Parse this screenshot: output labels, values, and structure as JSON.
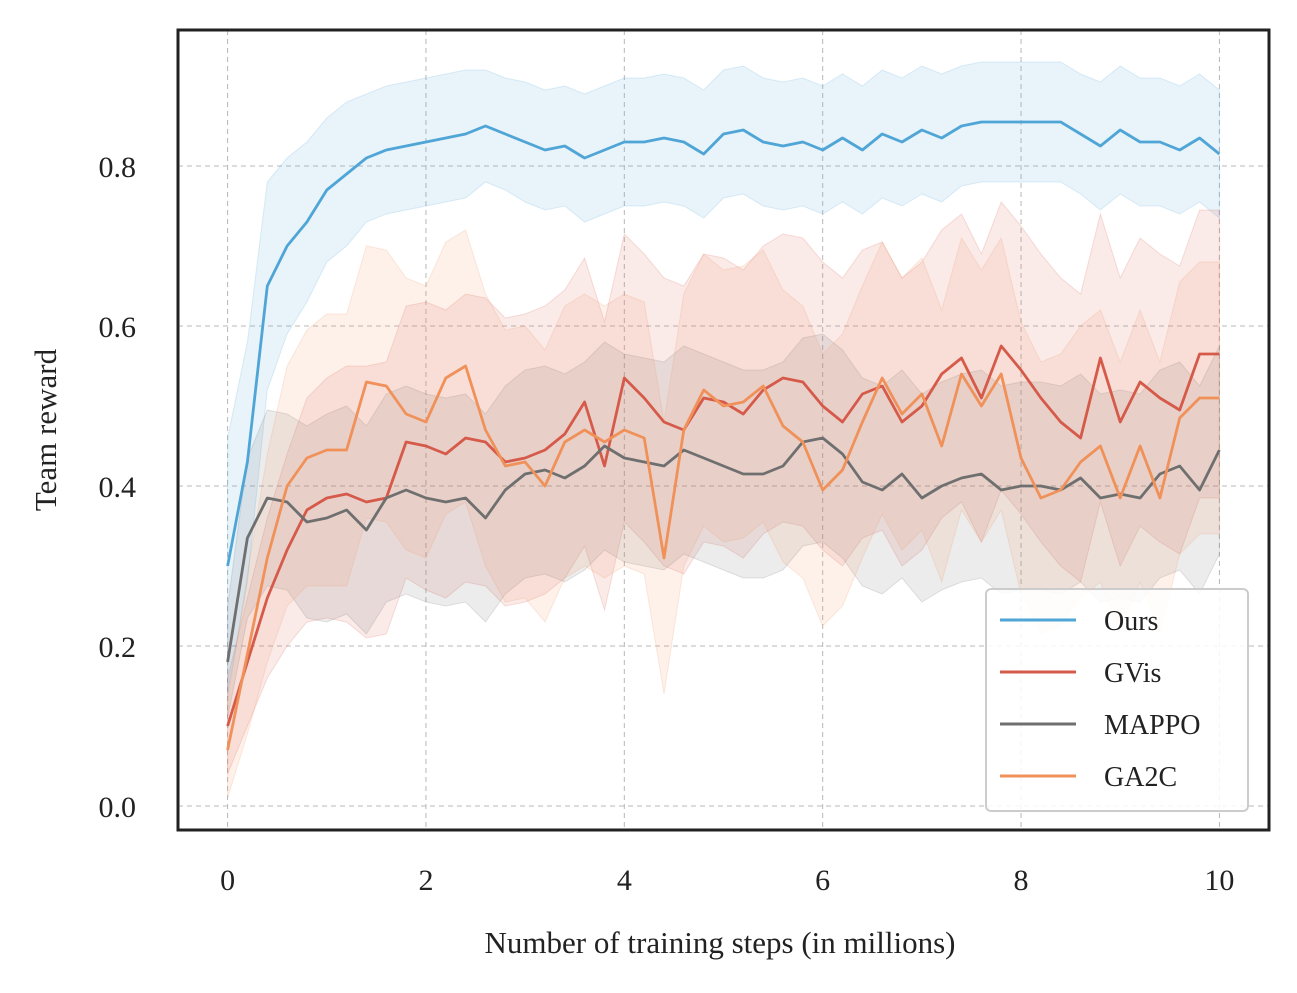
{
  "chart_data": {
    "type": "line",
    "title": "",
    "xlabel": "Number of training steps (in millions)",
    "ylabel": "Team reward",
    "xlim": [
      -0.5,
      10.5
    ],
    "ylim": [
      -0.03,
      0.97
    ],
    "xticks": [
      0,
      2,
      4,
      6,
      8,
      10
    ],
    "xtick_labels": [
      "0",
      "2",
      "4",
      "6",
      "8",
      "10"
    ],
    "yticks": [
      0.0,
      0.2,
      0.4,
      0.6,
      0.8
    ],
    "ytick_labels": [
      "0.0",
      "0.2",
      "0.4",
      "0.6",
      "0.8"
    ],
    "grid": true,
    "legend_position": "lower-right",
    "x": [
      0,
      0.2,
      0.4,
      0.6,
      0.8,
      1.0,
      1.2,
      1.4,
      1.6,
      1.8,
      2.0,
      2.2,
      2.4,
      2.6,
      2.8,
      3.0,
      3.2,
      3.4,
      3.6,
      3.8,
      4.0,
      4.2,
      4.4,
      4.6,
      4.8,
      5.0,
      5.2,
      5.4,
      5.6,
      5.8,
      6.0,
      6.2,
      6.4,
      6.6,
      6.8,
      7.0,
      7.2,
      7.4,
      7.6,
      7.8,
      8.0,
      8.2,
      8.4,
      8.6,
      8.8,
      9.0,
      9.2,
      9.4,
      9.6,
      9.8,
      10.0
    ],
    "series": [
      {
        "name": "Ours",
        "color": "#4ea5d6",
        "values": [
          0.3,
          0.43,
          0.65,
          0.7,
          0.73,
          0.77,
          0.79,
          0.81,
          0.82,
          0.825,
          0.83,
          0.835,
          0.84,
          0.85,
          0.84,
          0.83,
          0.82,
          0.825,
          0.81,
          0.82,
          0.83,
          0.83,
          0.835,
          0.83,
          0.815,
          0.84,
          0.845,
          0.83,
          0.825,
          0.83,
          0.82,
          0.835,
          0.82,
          0.84,
          0.83,
          0.845,
          0.835,
          0.85,
          0.855,
          0.855,
          0.855,
          0.855,
          0.855,
          0.84,
          0.825,
          0.845,
          0.83,
          0.83,
          0.82,
          0.835,
          0.815
        ],
        "band_width": [
          0.16,
          0.15,
          0.13,
          0.11,
          0.1,
          0.09,
          0.09,
          0.08,
          0.08,
          0.08,
          0.08,
          0.08,
          0.08,
          0.07,
          0.07,
          0.075,
          0.075,
          0.075,
          0.08,
          0.08,
          0.08,
          0.08,
          0.08,
          0.08,
          0.08,
          0.08,
          0.08,
          0.08,
          0.08,
          0.08,
          0.08,
          0.08,
          0.08,
          0.08,
          0.08,
          0.08,
          0.08,
          0.075,
          0.075,
          0.075,
          0.075,
          0.075,
          0.075,
          0.075,
          0.08,
          0.08,
          0.08,
          0.08,
          0.08,
          0.08,
          0.08
        ]
      },
      {
        "name": "GVis",
        "color": "#d65a4a",
        "values": [
          0.1,
          0.18,
          0.26,
          0.32,
          0.37,
          0.385,
          0.39,
          0.38,
          0.385,
          0.455,
          0.45,
          0.44,
          0.46,
          0.455,
          0.43,
          0.435,
          0.445,
          0.465,
          0.505,
          0.425,
          0.535,
          0.51,
          0.48,
          0.47,
          0.51,
          0.505,
          0.49,
          0.52,
          0.535,
          0.53,
          0.5,
          0.48,
          0.515,
          0.525,
          0.48,
          0.5,
          0.54,
          0.56,
          0.51,
          0.575,
          0.545,
          0.51,
          0.48,
          0.46,
          0.56,
          0.48,
          0.53,
          0.51,
          0.495,
          0.565,
          0.565
        ],
        "band_width": [
          0.06,
          0.08,
          0.1,
          0.12,
          0.14,
          0.15,
          0.16,
          0.17,
          0.17,
          0.17,
          0.18,
          0.18,
          0.18,
          0.18,
          0.18,
          0.18,
          0.18,
          0.18,
          0.18,
          0.18,
          0.18,
          0.18,
          0.18,
          0.18,
          0.18,
          0.18,
          0.18,
          0.18,
          0.18,
          0.18,
          0.18,
          0.18,
          0.18,
          0.18,
          0.18,
          0.18,
          0.18,
          0.18,
          0.18,
          0.18,
          0.18,
          0.18,
          0.18,
          0.18,
          0.18,
          0.18,
          0.18,
          0.18,
          0.18,
          0.18,
          0.18
        ]
      },
      {
        "name": "MAPPO",
        "color": "#6f6f6f",
        "values": [
          0.18,
          0.335,
          0.385,
          0.38,
          0.355,
          0.36,
          0.37,
          0.345,
          0.385,
          0.395,
          0.385,
          0.38,
          0.385,
          0.36,
          0.395,
          0.415,
          0.42,
          0.41,
          0.425,
          0.45,
          0.435,
          0.43,
          0.425,
          0.445,
          0.435,
          0.425,
          0.415,
          0.415,
          0.425,
          0.455,
          0.46,
          0.44,
          0.405,
          0.395,
          0.415,
          0.385,
          0.4,
          0.41,
          0.415,
          0.395,
          0.4,
          0.4,
          0.395,
          0.41,
          0.385,
          0.39,
          0.385,
          0.415,
          0.425,
          0.395,
          0.445
        ],
        "band_width": [
          0.07,
          0.1,
          0.11,
          0.11,
          0.12,
          0.13,
          0.13,
          0.13,
          0.13,
          0.13,
          0.13,
          0.13,
          0.13,
          0.13,
          0.13,
          0.13,
          0.13,
          0.13,
          0.13,
          0.13,
          0.13,
          0.13,
          0.13,
          0.13,
          0.13,
          0.13,
          0.13,
          0.13,
          0.13,
          0.13,
          0.13,
          0.13,
          0.13,
          0.13,
          0.13,
          0.13,
          0.13,
          0.13,
          0.13,
          0.13,
          0.13,
          0.13,
          0.13,
          0.13,
          0.13,
          0.13,
          0.13,
          0.13,
          0.13,
          0.13,
          0.13
        ]
      },
      {
        "name": "GA2C",
        "color": "#f0915a",
        "values": [
          0.07,
          0.19,
          0.31,
          0.4,
          0.435,
          0.445,
          0.445,
          0.53,
          0.525,
          0.49,
          0.48,
          0.535,
          0.55,
          0.47,
          0.425,
          0.43,
          0.4,
          0.455,
          0.47,
          0.455,
          0.47,
          0.46,
          0.31,
          0.47,
          0.52,
          0.5,
          0.505,
          0.525,
          0.475,
          0.455,
          0.395,
          0.42,
          0.48,
          0.535,
          0.49,
          0.515,
          0.45,
          0.54,
          0.5,
          0.54,
          0.435,
          0.385,
          0.395,
          0.43,
          0.45,
          0.385,
          0.45,
          0.385,
          0.485,
          0.51,
          0.51
        ],
        "band_width": [
          0.06,
          0.1,
          0.13,
          0.15,
          0.16,
          0.17,
          0.17,
          0.17,
          0.17,
          0.17,
          0.17,
          0.17,
          0.17,
          0.17,
          0.17,
          0.17,
          0.17,
          0.17,
          0.17,
          0.17,
          0.17,
          0.17,
          0.17,
          0.17,
          0.17,
          0.17,
          0.17,
          0.17,
          0.17,
          0.17,
          0.17,
          0.17,
          0.17,
          0.17,
          0.17,
          0.17,
          0.17,
          0.17,
          0.17,
          0.17,
          0.17,
          0.17,
          0.17,
          0.17,
          0.17,
          0.17,
          0.17,
          0.17,
          0.17,
          0.17,
          0.17
        ]
      }
    ]
  }
}
